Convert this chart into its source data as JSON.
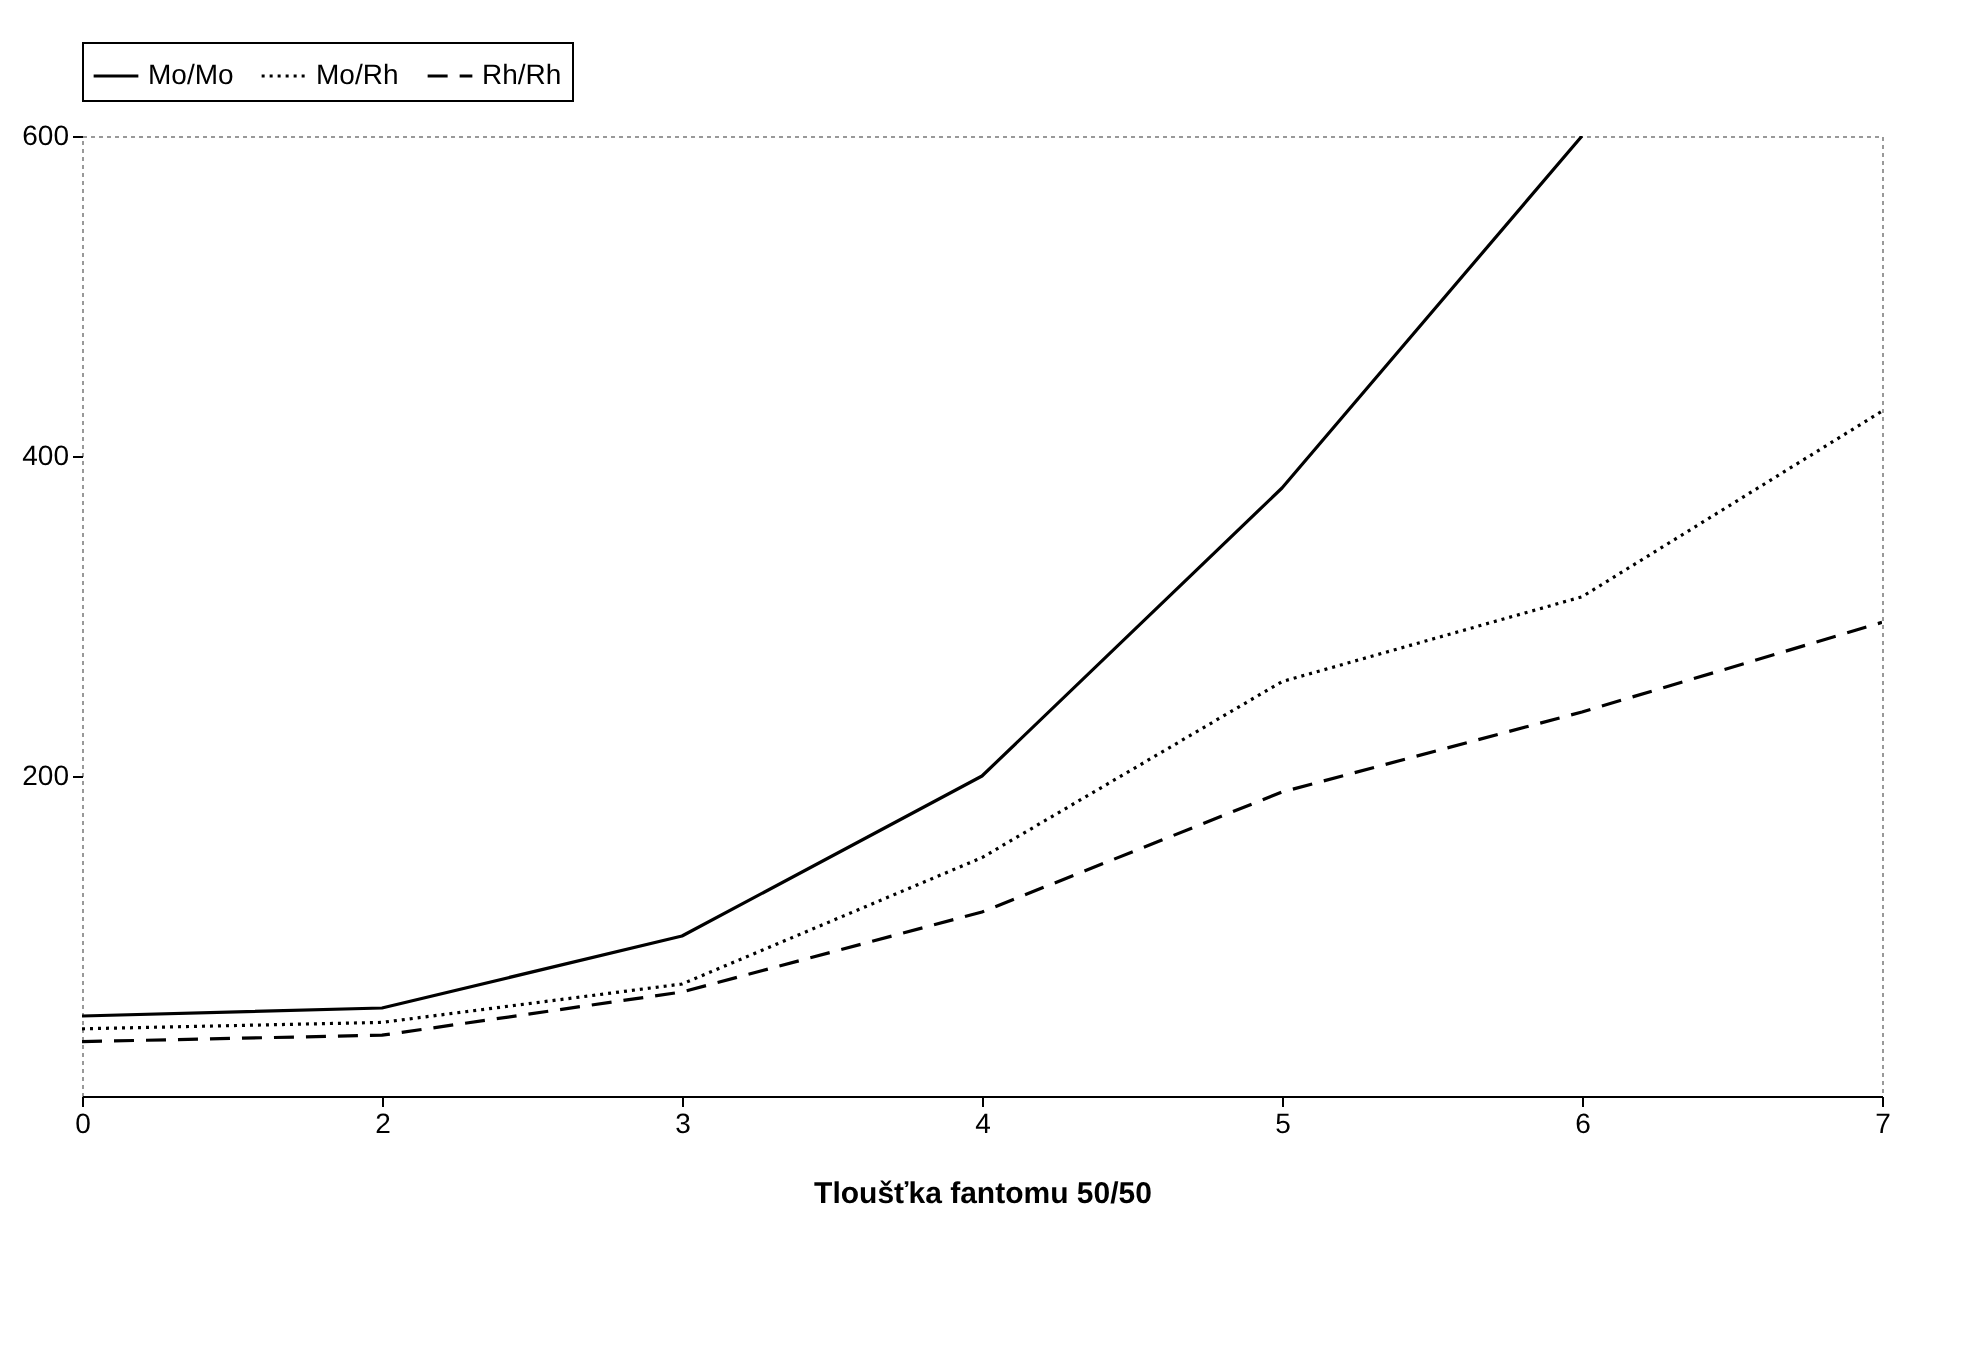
{
  "chart_data": {
    "type": "line",
    "xlabel": "Tloušťka fantomu 50/50",
    "categories": [
      "0",
      "2",
      "3",
      "4",
      "5",
      "6",
      "7"
    ],
    "series": [
      {
        "name": "Mo/Mo",
        "color": "#000000",
        "line_style": "solid",
        "values": [
          50,
          55,
          100,
          200,
          380,
          600,
          null
        ]
      },
      {
        "name": "Mo/Rh",
        "color": "#000000",
        "line_style": "dotted",
        "values": [
          42,
          46,
          70,
          149,
          259,
          312,
          428
        ]
      },
      {
        "name": "Rh/Rh",
        "color": "#000000",
        "line_style": "dashed",
        "values": [
          34,
          38,
          65,
          115,
          190,
          240,
          296
        ]
      }
    ],
    "ylim": [
      0,
      600
    ],
    "yticks": [
      200,
      400,
      600
    ],
    "grid": false,
    "legend": "top"
  }
}
